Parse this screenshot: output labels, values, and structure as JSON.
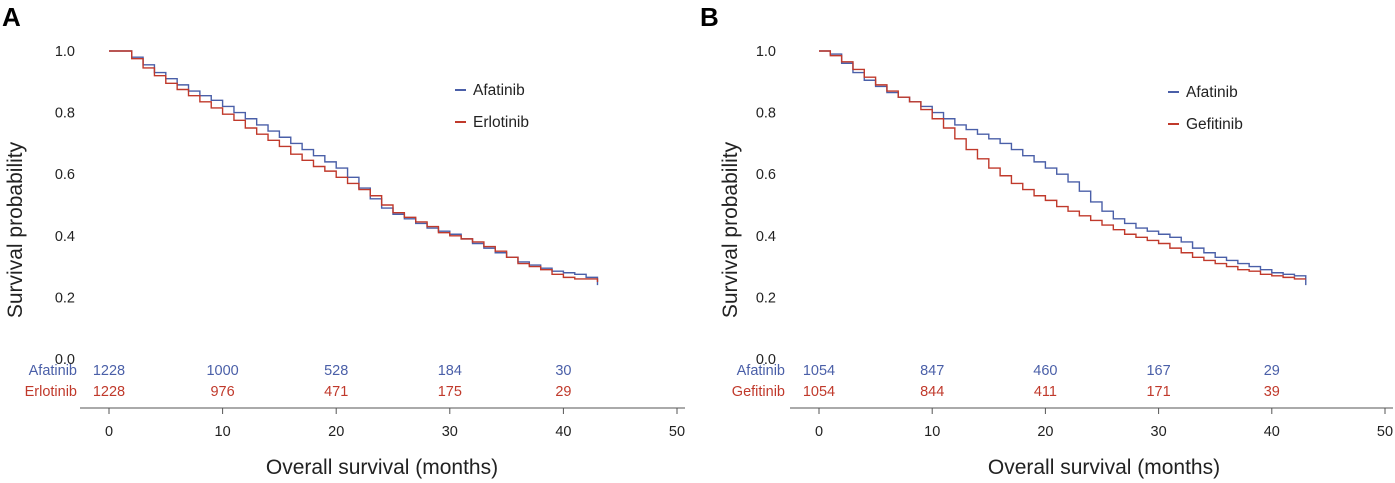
{
  "chart_data": [
    {
      "panel": "A",
      "type": "line",
      "xlabel": "Overall survival (months)",
      "ylabel": "Survival probability",
      "xlim": [
        0,
        50
      ],
      "ylim": [
        0,
        1
      ],
      "xticks": [
        "0",
        "10",
        "20",
        "30",
        "40",
        "50"
      ],
      "yticks": [
        "0.0",
        "0.2",
        "0.4",
        "0.6",
        "0.8",
        "1.0"
      ],
      "colors": {
        "Afatinib": "#4a5fa8",
        "Erlotinib": "#c0392b"
      },
      "legend": [
        "Afatinib",
        "Erlotinib"
      ],
      "series": [
        {
          "name": "Afatinib",
          "x": [
            0,
            1,
            2,
            3,
            4,
            5,
            6,
            7,
            8,
            9,
            10,
            11,
            12,
            13,
            14,
            15,
            16,
            17,
            18,
            19,
            20,
            21,
            22,
            23,
            24,
            25,
            26,
            27,
            28,
            29,
            30,
            31,
            32,
            33,
            34,
            35,
            36,
            37,
            38,
            39,
            40,
            41,
            42,
            43
          ],
          "y": [
            1.0,
            1.0,
            0.98,
            0.955,
            0.93,
            0.91,
            0.89,
            0.87,
            0.855,
            0.84,
            0.82,
            0.8,
            0.78,
            0.76,
            0.74,
            0.72,
            0.7,
            0.68,
            0.66,
            0.64,
            0.62,
            0.59,
            0.555,
            0.52,
            0.49,
            0.47,
            0.455,
            0.44,
            0.425,
            0.415,
            0.405,
            0.39,
            0.375,
            0.36,
            0.345,
            0.33,
            0.315,
            0.305,
            0.295,
            0.285,
            0.28,
            0.275,
            0.265,
            0.24
          ]
        },
        {
          "name": "Erlotinib",
          "x": [
            0,
            1,
            2,
            3,
            4,
            5,
            6,
            7,
            8,
            9,
            10,
            11,
            12,
            13,
            14,
            15,
            16,
            17,
            18,
            19,
            20,
            21,
            22,
            23,
            24,
            25,
            26,
            27,
            28,
            29,
            30,
            31,
            32,
            33,
            34,
            35,
            36,
            37,
            38,
            39,
            40,
            41,
            42,
            43
          ],
          "y": [
            1.0,
            1.0,
            0.975,
            0.945,
            0.92,
            0.895,
            0.875,
            0.855,
            0.835,
            0.815,
            0.795,
            0.775,
            0.75,
            0.73,
            0.71,
            0.69,
            0.665,
            0.645,
            0.625,
            0.61,
            0.59,
            0.57,
            0.55,
            0.53,
            0.5,
            0.475,
            0.46,
            0.445,
            0.43,
            0.41,
            0.4,
            0.39,
            0.38,
            0.365,
            0.35,
            0.33,
            0.31,
            0.3,
            0.29,
            0.275,
            0.265,
            0.26,
            0.26,
            0.25
          ]
        }
      ],
      "risk_table": {
        "times": [
          0,
          10,
          20,
          30,
          40
        ],
        "rows": [
          {
            "name": "Afatinib",
            "values": [
              "1228",
              "1000",
              "528",
              "184",
              "30"
            ]
          },
          {
            "name": "Erlotinib",
            "values": [
              "1228",
              "976",
              "471",
              "175",
              "29"
            ]
          }
        ]
      }
    },
    {
      "panel": "B",
      "type": "line",
      "xlabel": "Overall survival (months)",
      "ylabel": "Survival probability",
      "xlim": [
        0,
        50
      ],
      "ylim": [
        0,
        1
      ],
      "xticks": [
        "0",
        "10",
        "20",
        "30",
        "40",
        "50"
      ],
      "yticks": [
        "0.0",
        "0.2",
        "0.4",
        "0.6",
        "0.8",
        "1.0"
      ],
      "colors": {
        "Afatinib": "#4a5fa8",
        "Gefitinib": "#c0392b"
      },
      "legend": [
        "Afatinib",
        "Gefitinib"
      ],
      "series": [
        {
          "name": "Afatinib",
          "x": [
            0,
            1,
            2,
            3,
            4,
            5,
            6,
            7,
            8,
            9,
            10,
            11,
            12,
            13,
            14,
            15,
            16,
            17,
            18,
            19,
            20,
            21,
            22,
            23,
            24,
            25,
            26,
            27,
            28,
            29,
            30,
            31,
            32,
            33,
            34,
            35,
            36,
            37,
            38,
            39,
            40,
            41,
            42,
            43
          ],
          "y": [
            1.0,
            0.99,
            0.96,
            0.93,
            0.905,
            0.885,
            0.865,
            0.85,
            0.835,
            0.82,
            0.8,
            0.78,
            0.76,
            0.745,
            0.73,
            0.715,
            0.7,
            0.68,
            0.66,
            0.64,
            0.62,
            0.6,
            0.575,
            0.545,
            0.51,
            0.48,
            0.455,
            0.44,
            0.425,
            0.415,
            0.405,
            0.395,
            0.38,
            0.36,
            0.345,
            0.33,
            0.32,
            0.31,
            0.3,
            0.29,
            0.28,
            0.275,
            0.27,
            0.24
          ]
        },
        {
          "name": "Gefitinib",
          "x": [
            0,
            1,
            2,
            3,
            4,
            5,
            6,
            7,
            8,
            9,
            10,
            11,
            12,
            13,
            14,
            15,
            16,
            17,
            18,
            19,
            20,
            21,
            22,
            23,
            24,
            25,
            26,
            27,
            28,
            29,
            30,
            31,
            32,
            33,
            34,
            35,
            36,
            37,
            38,
            39,
            40,
            41,
            42,
            43
          ],
          "y": [
            1.0,
            0.985,
            0.965,
            0.94,
            0.915,
            0.89,
            0.87,
            0.85,
            0.835,
            0.81,
            0.78,
            0.75,
            0.715,
            0.68,
            0.65,
            0.62,
            0.595,
            0.57,
            0.55,
            0.53,
            0.515,
            0.495,
            0.48,
            0.465,
            0.45,
            0.435,
            0.42,
            0.405,
            0.395,
            0.385,
            0.375,
            0.36,
            0.345,
            0.33,
            0.32,
            0.31,
            0.3,
            0.29,
            0.285,
            0.275,
            0.27,
            0.265,
            0.26,
            0.26
          ]
        }
      ],
      "risk_table": {
        "times": [
          0,
          10,
          20,
          30,
          40
        ],
        "rows": [
          {
            "name": "Afatinib",
            "values": [
              "1054",
              "847",
              "460",
              "167",
              "29"
            ]
          },
          {
            "name": "Gefitinib",
            "values": [
              "1054",
              "844",
              "411",
              "171",
              "39"
            ]
          }
        ]
      }
    }
  ]
}
